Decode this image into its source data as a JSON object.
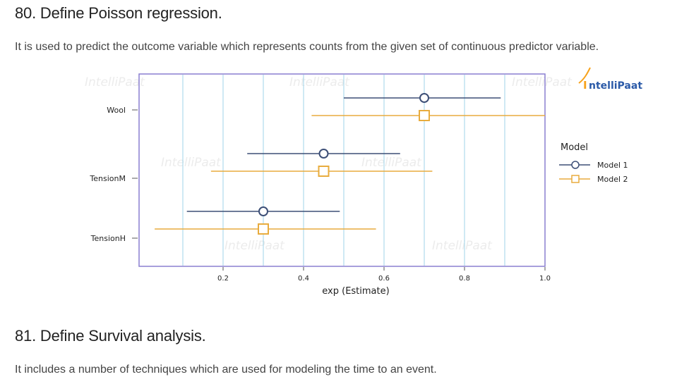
{
  "sections": [
    {
      "heading": "80. Define Poisson regression.",
      "text": "It is used to predict the outcome variable which represents counts from the given set of continuous predictor variable."
    },
    {
      "heading": "81. Define Survival analysis.",
      "text": "It includes a number of techniques which are used for modeling the time to an event."
    }
  ],
  "brand": {
    "logo_text": "ntelliPaat",
    "logo_initial": "I",
    "watermark": "IntelliPaat"
  },
  "colors": {
    "model1": "#3d4f77",
    "model2": "#e8ac3e",
    "frame": "#8a7fd0",
    "grid": "#9fd3e8",
    "logo_blue": "#2b5aa8",
    "logo_orange": "#f7a21b"
  },
  "chart_data": {
    "type": "forest",
    "xlabel": "exp (Estimate)",
    "xlim": [
      0.0,
      1.02
    ],
    "xticks": [
      0.2,
      0.4,
      0.6,
      0.8,
      1.0
    ],
    "xtick_labels": [
      "0.2",
      "0.4",
      "0.6",
      "0.8",
      "1.0"
    ],
    "gridlines": [
      0.1,
      0.2,
      0.3,
      0.4,
      0.5,
      0.6,
      0.7,
      0.8,
      0.9
    ],
    "reference_line": 1.0,
    "categories": [
      "Wool",
      "TensionM",
      "TensionH"
    ],
    "legend_title": "Model",
    "series": [
      {
        "name": "Model 1",
        "marker": "circle",
        "estimate": [
          0.7,
          0.45,
          0.3
        ],
        "lower": [
          0.5,
          0.26,
          0.11
        ],
        "upper": [
          0.89,
          0.64,
          0.49
        ]
      },
      {
        "name": "Model 2",
        "marker": "square",
        "estimate": [
          0.7,
          0.45,
          0.3
        ],
        "lower": [
          0.42,
          0.17,
          0.03
        ],
        "upper": [
          1.0,
          0.72,
          0.58
        ]
      }
    ]
  }
}
